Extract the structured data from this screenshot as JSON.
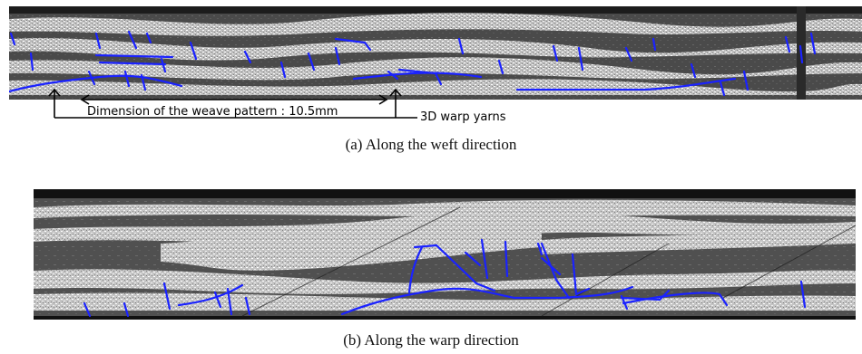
{
  "figure": {
    "panel_a": {
      "caption": "(a) Along the weft direction",
      "annotation_dimension": "Dimension of the weave pattern : 10.5mm",
      "annotation_warp": "3D warp yarns"
    },
    "panel_b": {
      "caption": "(b) Along the warp direction"
    },
    "colors": {
      "crack": "#1a22ff",
      "matrix_dark": "#3a3a3a",
      "yarn_light": "#d8d8d8",
      "annotation": "#000000"
    }
  }
}
